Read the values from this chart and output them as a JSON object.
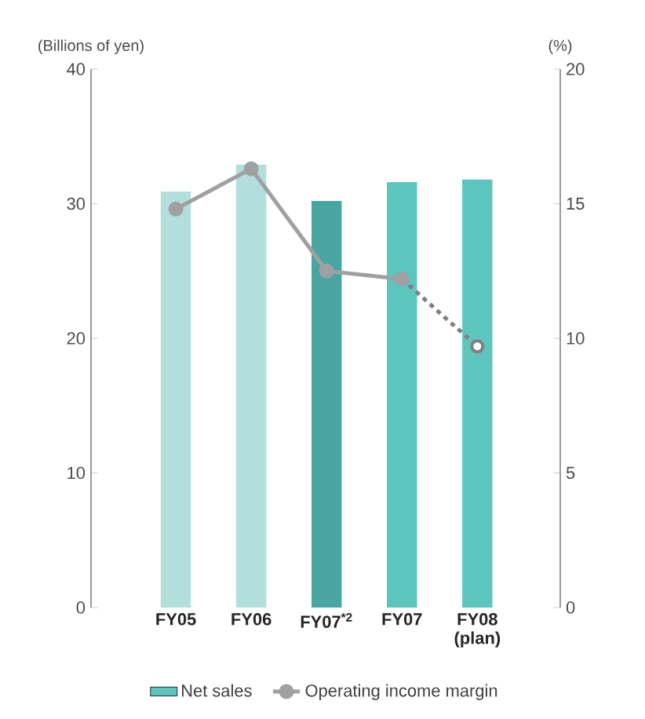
{
  "chart_data": {
    "type": "bar",
    "categories": [
      "FY05",
      "FY06",
      "FY07$^{*2}$",
      "FY07",
      "FY08 (plan)"
    ],
    "ylabel": "(Billions of yen)",
    "y2label": "(%)",
    "ylim": [
      0,
      40
    ],
    "yticks": [
      0,
      10,
      20,
      30,
      40
    ],
    "y2lim": [
      0,
      20
    ],
    "y2ticks": [
      0,
      5,
      10,
      15,
      20
    ],
    "grid": false,
    "legend": "bottom",
    "series": [
      {
        "name": "Net sales",
        "color": "#5bc5be",
        "colors": [
          "#b2dfdc",
          "#b2dfdc",
          "#48a5a0",
          "#5bc5be",
          "#5bc5be"
        ],
        "values": [
          30.9,
          32.9,
          30.2,
          31.6,
          31.8
        ]
      },
      {
        "name": "Operating income margin",
        "type": "line",
        "axis": "y2",
        "color": "#a0a0a3",
        "marker": "circle",
        "line_style": "solid",
        "values": [
          14.8,
          16.3,
          12.5,
          12.2,
          null
        ]
      },
      {
        "type": "line",
        "axis": "y2",
        "color": "#808083",
        "marker": "circle",
        "line_style": "dotted",
        "values": [
          null,
          null,
          null,
          12.2,
          9.7
        ]
      }
    ]
  }
}
